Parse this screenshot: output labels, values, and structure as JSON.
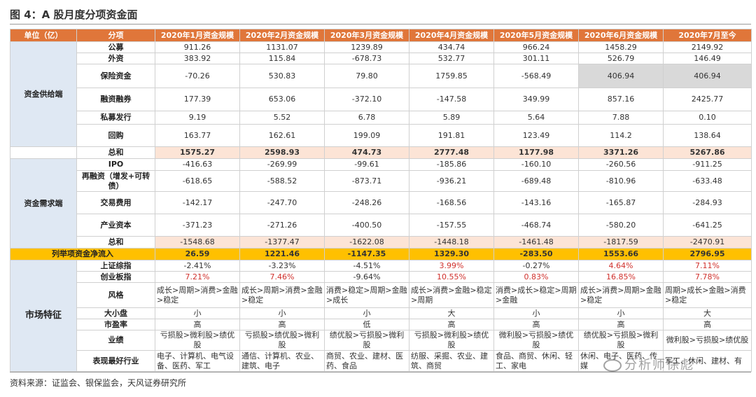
{
  "title": "图 4：A 股月度分项资金面",
  "headers": [
    "单位（亿）",
    "分项",
    "2020年1月资金规模",
    "2020年2月资金规模",
    "2020年3月资金规模",
    "2020年4月资金规模",
    "2020年5月资金规模",
    "2020年6月资金规模",
    "2020年7月至今"
  ],
  "supply": {
    "label": "资金供给端",
    "rows": [
      {
        "item": "公募",
        "values": [
          "911.26",
          "1131.07",
          "1239.89",
          "434.74",
          "966.24",
          "1458.29",
          "2149.92"
        ]
      },
      {
        "item": "外资",
        "values": [
          "383.92",
          "115.84",
          "-678.73",
          "532.77",
          "301.11",
          "526.79",
          "146.49"
        ]
      },
      {
        "item": "保险资金",
        "values": [
          "-70.26",
          "530.83",
          "79.80",
          "1759.85",
          "-568.49",
          "406.94",
          "406.94"
        ]
      },
      {
        "item": "融资融券",
        "values": [
          "177.39",
          "653.06",
          "-372.10",
          "-147.58",
          "349.99",
          "857.16",
          "2425.77"
        ]
      },
      {
        "item": "私募发行",
        "values": [
          "9.19",
          "5.52",
          "6.78",
          "5.89",
          "5.64",
          "7.88",
          "0.10"
        ]
      },
      {
        "item": "回购",
        "values": [
          "163.77",
          "162.61",
          "199.09",
          "191.81",
          "123.49",
          "114.2",
          "138.64"
        ]
      }
    ],
    "total": {
      "item": "总和",
      "values": [
        "1575.27",
        "2598.93",
        "474.73",
        "2777.48",
        "1177.98",
        "3371.26",
        "5267.86"
      ]
    }
  },
  "demand": {
    "label": "资金需求端",
    "rows": [
      {
        "item": "IPO",
        "values": [
          "-416.63",
          "-269.99",
          "-99.61",
          "-185.86",
          "-160.10",
          "-260.56",
          "-911.25"
        ]
      },
      {
        "item": "再融资（增发+可转债）",
        "values": [
          "-618.65",
          "-588.52",
          "-873.71",
          "-936.21",
          "-689.48",
          "-810.96",
          "-633.48"
        ]
      },
      {
        "item": "交易费用",
        "values": [
          "-142.17",
          "-247.70",
          "-248.26",
          "-168.56",
          "-143.16",
          "-165.87",
          "-284.93"
        ]
      },
      {
        "item": "产业资本",
        "values": [
          "-371.23",
          "-271.26",
          "-400.50",
          "-157.55",
          "-468.74",
          "-580.20",
          "-641.25"
        ]
      }
    ],
    "total": {
      "item": "总和",
      "values": [
        "-1548.68",
        "-1377.47",
        "-1622.08",
        "-1448.18",
        "-1461.48",
        "-1817.59",
        "-2470.91"
      ]
    }
  },
  "net": {
    "label": "列举项资金净流入",
    "values": [
      "26.59",
      "1221.46",
      "-1147.35",
      "1329.30",
      "-283.50",
      "1553.66",
      "2796.95"
    ]
  },
  "market": {
    "label": "市场特征",
    "rows": [
      {
        "item": "上证综指",
        "values": [
          "-2.41%",
          "-3.23%",
          "-4.51%",
          "3.99%",
          "-0.27%",
          "4.64%",
          "7.11%"
        ]
      },
      {
        "item": "创业板指",
        "values": [
          "7.21%",
          "7.46%",
          "-9.64%",
          "10.55%",
          "0.83%",
          "16.85%",
          "7.78%"
        ]
      },
      {
        "item": "风格",
        "values": [
          "成长>周期>消费>金融>稳定",
          "成长>周期>消费>金融>稳定",
          "消费>稳定>周期>金融>成长",
          "成长>消费>金融>稳定>周期",
          "消费>成长>稳定>周期>金融",
          "成长>消费>周期>金融>稳定",
          "周期>成长>金融>消费>稳定"
        ]
      },
      {
        "item": "大小盘",
        "values": [
          "小",
          "小",
          "小",
          "大",
          "小",
          "小",
          "大"
        ]
      },
      {
        "item": "市盈率",
        "values": [
          "高",
          "高",
          "低",
          "高",
          "高",
          "高",
          "高"
        ]
      },
      {
        "item": "业绩",
        "values": [
          "亏损股>微利股>绩优股",
          "亏损股>绩优股>微利股",
          "绩优股>亏损股>微利股",
          "亏损股>微利股>绩优股",
          "微利股>亏损股>绩优股",
          "绩优股>亏损股>微利股",
          "微利股>亏损股>绩优股"
        ]
      },
      {
        "item": "表现最好行业",
        "values": [
          "电子、计算机、电气设备、医药、军工",
          "通信、计算机、农业、建筑、电子",
          "商贸、农业、建材、医药、食品",
          "纺服、采掘、农业、建筑、商贸",
          "食品、商贸、休闲、轻工、家电",
          "休闲、电子、医药、传媒",
          "军工、休闲、建材、有"
        ]
      }
    ]
  },
  "source": "资料来源：证监会、银保监会，天风证券研究所",
  "watermark": "分析师徐彪"
}
